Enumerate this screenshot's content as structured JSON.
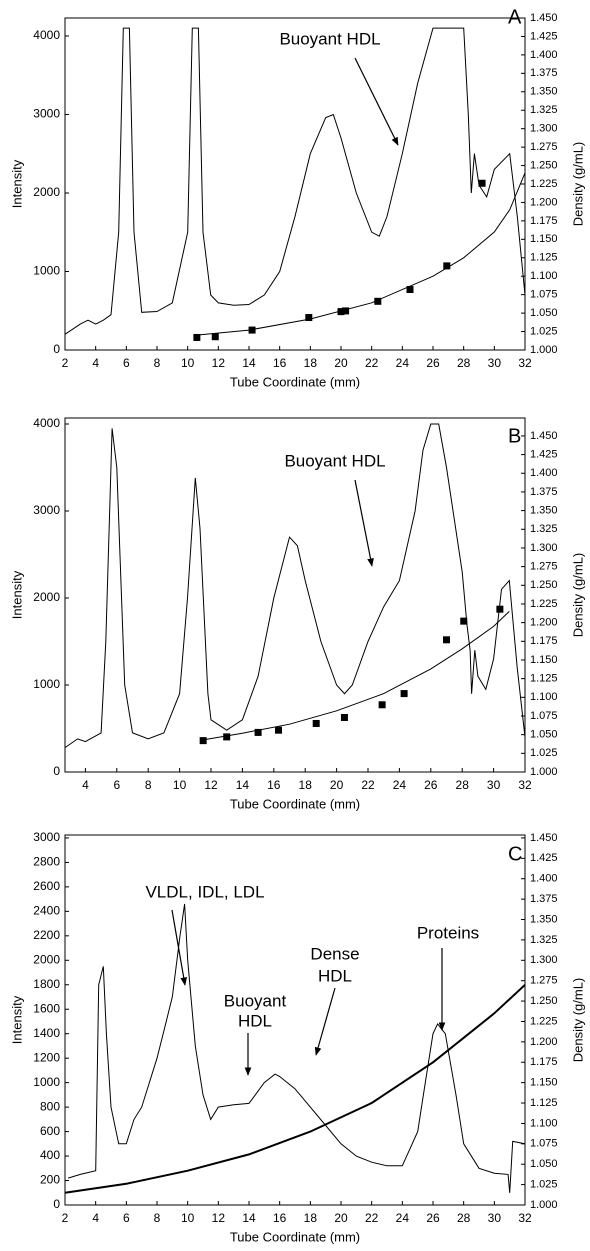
{
  "chart_data": [
    {
      "type": "line",
      "label": "A",
      "xlabel": "Tube Coordinate (mm)",
      "ylabel": "Intensity",
      "y2label": "Density (g/mL)",
      "annotations": [
        [
          "Buoyant HDL"
        ]
      ],
      "xlim": [
        2,
        32
      ],
      "xticks": [
        2,
        4,
        6,
        8,
        10,
        12,
        14,
        16,
        18,
        20,
        22,
        24,
        26,
        28,
        30,
        32
      ],
      "ylim": [
        0,
        4229
      ],
      "yticks": [
        0,
        1000,
        2000,
        3000,
        4000
      ],
      "y2lim": [
        1,
        1.45
      ],
      "y2ticks": [
        {
          "value": 1,
          "label": "1.000"
        },
        {
          "value": 1.025,
          "label": "1.025"
        },
        {
          "value": 1.05,
          "label": "1.050"
        },
        {
          "value": 1.075,
          "label": "1.075"
        },
        {
          "value": 1.1,
          "label": "1.100"
        },
        {
          "value": 1.125,
          "label": "1.125"
        },
        {
          "value": 1.15,
          "label": "1.150"
        },
        {
          "value": 1.175,
          "label": "1.175"
        },
        {
          "value": 1.2,
          "label": "1.200"
        },
        {
          "value": 1.225,
          "label": "1.225"
        },
        {
          "value": 1.25,
          "label": "1.250"
        },
        {
          "value": 1.275,
          "label": "1.275"
        },
        {
          "value": 1.3,
          "label": "1.300"
        },
        {
          "value": 1.325,
          "label": "1.325"
        },
        {
          "value": 1.35,
          "label": "1.350"
        },
        {
          "value": 1.375,
          "label": "1.375"
        },
        {
          "value": 1.4,
          "label": "1.400"
        },
        {
          "value": 1.425,
          "label": "1.425"
        },
        {
          "value": 1.45,
          "label": "1.450"
        }
      ],
      "series": [
        {
          "style": "line",
          "color": "#000000",
          "x": [
            2,
            3,
            3.5,
            4,
            4.5,
            5,
            5.5,
            5.8,
            6.2,
            6.5,
            7,
            8,
            9,
            10,
            10.3,
            10.7,
            11,
            11.5,
            12,
            13,
            14,
            15,
            16,
            17,
            18,
            19,
            19.5,
            20,
            21,
            22,
            22.5,
            23,
            24,
            25,
            26,
            28,
            28.3,
            28.5,
            28.7,
            29,
            29.5,
            30,
            31,
            31.5,
            32
          ],
          "values": [
            200,
            330,
            380,
            330,
            380,
            450,
            1500,
            4100,
            4100,
            1500,
            480,
            490,
            600,
            1500,
            4100,
            4100,
            1500,
            700,
            600,
            570,
            580,
            700,
            1000,
            1700,
            2500,
            2960,
            3000,
            2700,
            2000,
            1500,
            1450,
            1700,
            2500,
            3400,
            4100,
            4100,
            3000,
            2000,
            2500,
            2100,
            1950,
            2300,
            2500,
            1700,
            700
          ]
        },
        {
          "style": "markers",
          "axis": "y2",
          "color": "#000000",
          "x": [
            10.6,
            11.8,
            14.2,
            17.9,
            20,
            20.3,
            22.4,
            24.5,
            26.9,
            29.2
          ],
          "values": [
            1.017,
            1.018,
            1.027,
            1.044,
            1.052,
            1.053,
            1.066,
            1.082,
            1.114,
            1.226
          ]
        },
        {
          "style": "line",
          "axis": "y2",
          "color": "#000000",
          "x": [
            10.5,
            14,
            18,
            22,
            26,
            28,
            30,
            31,
            32
          ],
          "values": [
            1.02,
            1.027,
            1.042,
            1.064,
            1.1,
            1.125,
            1.16,
            1.19,
            1.24
          ]
        }
      ]
    },
    {
      "type": "line",
      "label": "B",
      "xlabel": "Tube Coordinate (mm)",
      "ylabel": "Intensity",
      "y2label": "Density (g/mL)",
      "annotations": [
        [
          "Buoyant HDL"
        ]
      ],
      "xlim": [
        2.7,
        32
      ],
      "xticks": [
        4,
        6,
        8,
        10,
        12,
        14,
        16,
        18,
        20,
        22,
        24,
        26,
        28,
        30,
        32
      ],
      "ylim": [
        0,
        4069
      ],
      "yticks": [
        0,
        1000,
        2000,
        3000,
        4000
      ],
      "y2lim": [
        1,
        1.474
      ],
      "y2ticks": [
        {
          "value": 1,
          "label": "1.000"
        },
        {
          "value": 1.025,
          "label": "1.025"
        },
        {
          "value": 1.05,
          "label": "1.050"
        },
        {
          "value": 1.075,
          "label": "1.075"
        },
        {
          "value": 1.1,
          "label": "1.100"
        },
        {
          "value": 1.125,
          "label": "1.125"
        },
        {
          "value": 1.15,
          "label": "1.150"
        },
        {
          "value": 1.175,
          "label": "1.175"
        },
        {
          "value": 1.2,
          "label": "1.200"
        },
        {
          "value": 1.225,
          "label": "1.225"
        },
        {
          "value": 1.25,
          "label": "1.250"
        },
        {
          "value": 1.275,
          "label": "1.275"
        },
        {
          "value": 1.3,
          "label": "1.300"
        },
        {
          "value": 1.325,
          "label": "1.325"
        },
        {
          "value": 1.35,
          "label": "1.350"
        },
        {
          "value": 1.375,
          "label": "1.375"
        },
        {
          "value": 1.4,
          "label": "1.400"
        },
        {
          "value": 1.425,
          "label": "1.425"
        },
        {
          "value": 1.45,
          "label": "1.450"
        }
      ],
      "series": [
        {
          "style": "line",
          "color": "#000000",
          "x": [
            2.7,
            3.5,
            4,
            5,
            5.3,
            5.7,
            6,
            6.5,
            7,
            8,
            9,
            10,
            10.5,
            11,
            11.3,
            11.8,
            12,
            13,
            14,
            15,
            16,
            17,
            17.5,
            18,
            19,
            20,
            20.5,
            21,
            22,
            23,
            24,
            25,
            25.5,
            26,
            26.5,
            27,
            28,
            28.3,
            28.5,
            28.6,
            28.8,
            29,
            29.5,
            30,
            30.5,
            31,
            31.5,
            32
          ],
          "values": [
            280,
            380,
            350,
            450,
            1500,
            3950,
            3500,
            1000,
            450,
            380,
            450,
            900,
            2000,
            3380,
            2800,
            900,
            600,
            480,
            600,
            1100,
            2000,
            2700,
            2600,
            2200,
            1500,
            1000,
            900,
            1000,
            1500,
            1900,
            2200,
            3000,
            3700,
            4000,
            4000,
            3500,
            2300,
            1700,
            1400,
            900,
            1400,
            1100,
            950,
            1300,
            2100,
            2200,
            1200,
            400
          ]
        },
        {
          "style": "markers",
          "axis": "y2",
          "color": "#000000",
          "x": [
            11.5,
            13,
            15,
            16.3,
            18.7,
            20.5,
            22.9,
            24.3,
            27,
            28.1,
            30.4
          ],
          "values": [
            1.042,
            1.047,
            1.053,
            1.056,
            1.065,
            1.073,
            1.09,
            1.105,
            1.177,
            1.202,
            1.218
          ]
        },
        {
          "style": "line",
          "axis": "y2",
          "color": "#000000",
          "x": [
            11.5,
            14,
            17,
            20,
            23,
            26,
            28,
            30,
            31
          ],
          "values": [
            1.043,
            1.052,
            1.064,
            1.082,
            1.105,
            1.138,
            1.165,
            1.195,
            1.215
          ]
        }
      ]
    },
    {
      "type": "line",
      "label": "C",
      "xlabel": "Tube Coordinate (mm)",
      "ylabel": "Intensity",
      "y2label": "Density (g/mL)",
      "annotations": [
        [
          "VLDL, IDL, LDL"
        ],
        [
          "Buoyant",
          "HDL"
        ],
        [
          "Dense",
          "HDL"
        ],
        [
          "Proteins"
        ]
      ],
      "xlim": [
        2,
        32
      ],
      "xticks": [
        2,
        4,
        6,
        8,
        10,
        12,
        14,
        16,
        18,
        20,
        22,
        24,
        26,
        28,
        30,
        32
      ],
      "ylim": [
        0,
        3024
      ],
      "yticks": [
        0,
        200,
        400,
        600,
        800,
        1000,
        1200,
        1400,
        1600,
        1800,
        2000,
        2200,
        2400,
        2600,
        2800,
        3000
      ],
      "y2lim": [
        1,
        1.4536
      ],
      "y2ticks": [
        {
          "value": 1,
          "label": "1.000"
        },
        {
          "value": 1.025,
          "label": "1.025"
        },
        {
          "value": 1.05,
          "label": "1.050"
        },
        {
          "value": 1.075,
          "label": "1.075"
        },
        {
          "value": 1.1,
          "label": "1.100"
        },
        {
          "value": 1.125,
          "label": "1.125"
        },
        {
          "value": 1.15,
          "label": "1.150"
        },
        {
          "value": 1.175,
          "label": "1.175"
        },
        {
          "value": 1.2,
          "label": "1.200"
        },
        {
          "value": 1.225,
          "label": "1.225"
        },
        {
          "value": 1.25,
          "label": "1.250"
        },
        {
          "value": 1.275,
          "label": "1.275"
        },
        {
          "value": 1.3,
          "label": "1.300"
        },
        {
          "value": 1.325,
          "label": "1.325"
        },
        {
          "value": 1.35,
          "label": "1.350"
        },
        {
          "value": 1.375,
          "label": "1.375"
        },
        {
          "value": 1.4,
          "label": "1.400"
        },
        {
          "value": 1.425,
          "label": "1.425"
        },
        {
          "value": 1.45,
          "label": "1.450"
        }
      ],
      "series": [
        {
          "style": "line",
          "color": "#000000",
          "x": [
            2.2,
            3,
            4,
            4.2,
            4.5,
            4.7,
            5,
            5.5,
            6,
            6.5,
            7,
            8,
            8.5,
            9,
            9.5,
            9.8,
            10,
            10.5,
            11,
            11.5,
            12,
            13,
            14,
            15,
            15.7,
            16,
            17,
            18,
            19,
            20,
            21,
            22,
            23,
            24,
            25,
            25.5,
            26,
            26.3,
            26.8,
            27.5,
            28,
            29,
            30,
            30.9,
            31,
            31.2,
            32
          ],
          "values": [
            220,
            250,
            280,
            1800,
            1950,
            1400,
            800,
            500,
            500,
            700,
            800,
            1200,
            1450,
            1700,
            2200,
            2460,
            2000,
            1300,
            900,
            700,
            800,
            820,
            830,
            1000,
            1070,
            1050,
            950,
            800,
            650,
            500,
            400,
            350,
            320,
            320,
            600,
            1000,
            1400,
            1480,
            1400,
            900,
            500,
            300,
            260,
            250,
            100,
            520,
            500
          ]
        },
        {
          "style": "thick",
          "axis": "y2",
          "color": "#000000",
          "x": [
            2,
            6,
            10,
            14,
            18,
            22,
            26,
            28,
            30,
            32
          ],
          "values": [
            1.015,
            1.026,
            1.042,
            1.062,
            1.09,
            1.125,
            1.175,
            1.205,
            1.235,
            1.27
          ]
        }
      ]
    }
  ]
}
